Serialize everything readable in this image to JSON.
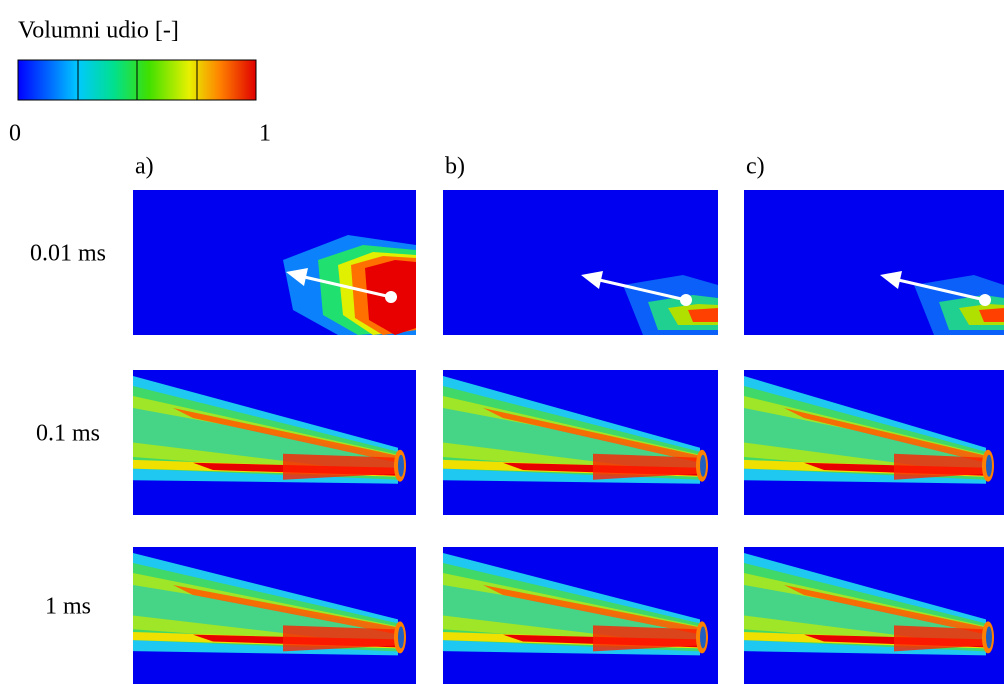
{
  "colorbar": {
    "title": "Volumni udio [-]",
    "ticks": [
      0,
      1
    ]
  },
  "columns": [
    "a)",
    "b)",
    "c)"
  ],
  "rows": [
    "0.01 ms",
    "0.1 ms",
    "1 ms"
  ]
}
